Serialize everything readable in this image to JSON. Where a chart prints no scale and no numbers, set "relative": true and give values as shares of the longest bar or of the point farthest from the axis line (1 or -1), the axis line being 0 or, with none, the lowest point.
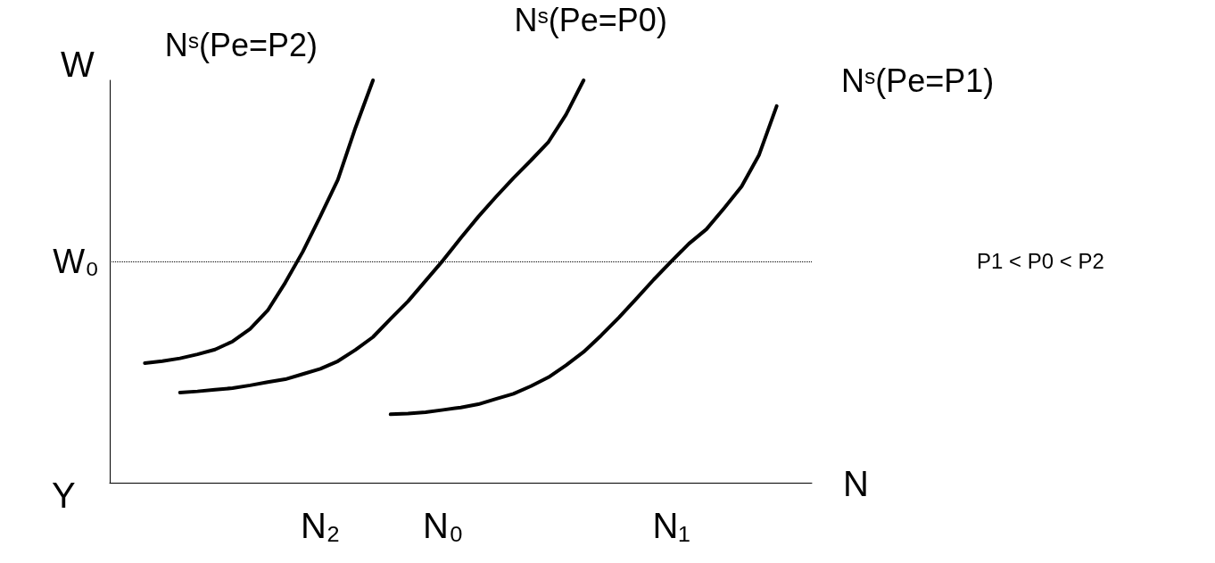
{
  "chart_data": {
    "type": "line",
    "relative": true,
    "xlabel": "N",
    "ylabel": "W",
    "annotations": [
      "Y",
      "P1 < P0 < P2"
    ],
    "categories": [
      null,
      null,
      null,
      null,
      null,
      null,
      null,
      null,
      null,
      null,
      null,
      null,
      "N₂",
      null,
      null,
      null,
      null,
      null,
      null,
      "N₀",
      null,
      null,
      null,
      null,
      null,
      null,
      null,
      null,
      null,
      null,
      null,
      null,
      "N₁",
      null,
      null,
      null,
      null,
      null,
      null,
      null,
      null
    ],
    "ref_lines": [
      {
        "axis": "y",
        "value": 0.548,
        "label": "W₀",
        "line_style": "dotted",
        "color": "#000000"
      }
    ],
    "series": [
      {
        "name": "Nˢ(Pe=P2)",
        "color": "#000000",
        "values": [
          null,
          null,
          0.297,
          0.302,
          0.309,
          0.319,
          0.331,
          0.351,
          0.382,
          0.428,
          0.497,
          0.574,
          0.662,
          0.753,
          0.882,
          1,
          null,
          null,
          null,
          null,
          null,
          null,
          null,
          null,
          null,
          null,
          null,
          null,
          null,
          null,
          null,
          null,
          null,
          null,
          null,
          null,
          null,
          null,
          null,
          null,
          null
        ]
      },
      {
        "name": "Nˢ(Pe=P0)",
        "color": "#000000",
        "values": [
          null,
          null,
          null,
          null,
          0.224,
          0.227,
          0.231,
          0.235,
          0.242,
          0.25,
          0.257,
          0.27,
          0.283,
          0.302,
          0.33,
          0.362,
          0.407,
          0.451,
          0.502,
          0.553,
          0.608,
          0.661,
          0.71,
          0.757,
          0.801,
          0.847,
          0.915,
          1,
          null,
          null,
          null,
          null,
          null,
          null,
          null,
          null,
          null,
          null,
          null,
          null,
          null
        ]
      },
      {
        "name": "Nˢ(Pe=P1)",
        "color": "#000000",
        "values": [
          null,
          null,
          null,
          null,
          null,
          null,
          null,
          null,
          null,
          null,
          null,
          null,
          null,
          null,
          null,
          null,
          0.17,
          0.172,
          0.175,
          0.181,
          0.187,
          0.195,
          0.208,
          0.221,
          0.24,
          0.262,
          0.292,
          0.325,
          0.366,
          0.41,
          0.457,
          0.505,
          0.55,
          0.594,
          0.63,
          0.682,
          0.736,
          0.815,
          0.936,
          null,
          null
        ]
      }
    ],
    "legend": false,
    "grid": false,
    "marker": "none",
    "line_style": "solid"
  }
}
